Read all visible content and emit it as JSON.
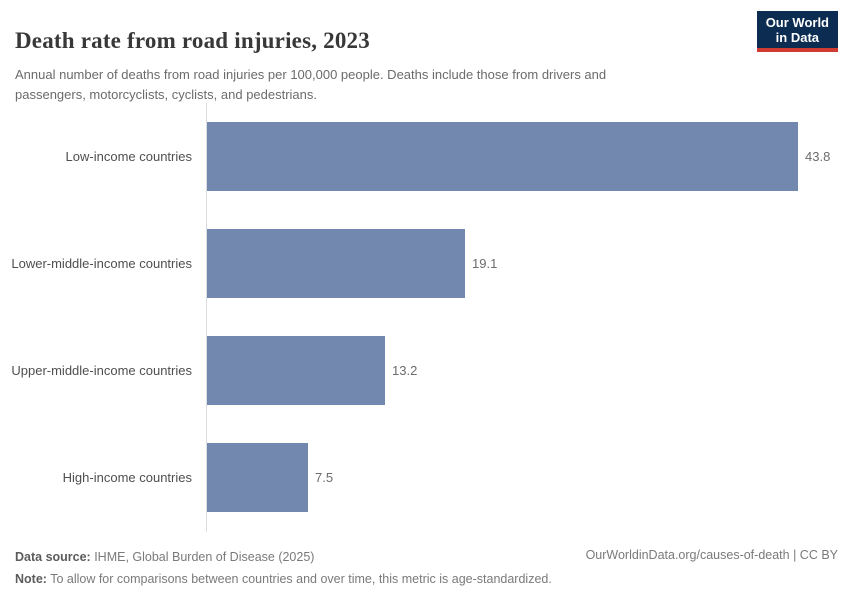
{
  "header": {
    "title": "Death rate from road injuries, 2023",
    "subtitle": "Annual number of deaths from road injuries per 100,000 people. Deaths include those from drivers and passengers, motorcyclists, cyclists, and pedestrians.",
    "logo": {
      "line1": "Our World",
      "line2": "in Data"
    }
  },
  "chart_data": {
    "type": "bar",
    "orientation": "horizontal",
    "title": "Death rate from road injuries, 2023",
    "categories": [
      "Low-income countries",
      "Lower-middle-income countries",
      "Upper-middle-income countries",
      "High-income countries"
    ],
    "values": [
      43.8,
      19.1,
      13.2,
      7.5
    ],
    "value_labels": [
      "43.8",
      "19.1",
      "13.2",
      "7.5"
    ],
    "xlabel": "",
    "ylabel": "",
    "xlim": [
      0,
      43.8
    ],
    "grid": false,
    "legend": false,
    "bar_color": "#7288af"
  },
  "footer": {
    "data_source_label": "Data source:",
    "data_source_text": " IHME, Global Burden of Disease (2025)",
    "note_label": "Note:",
    "note_text": " To allow for comparisons between countries and over time, this metric is age-standardized.",
    "attribution": "OurWorldinData.org/causes-of-death | CC BY"
  },
  "colors": {
    "bar": "#7288af",
    "logo_background": "#0d2c51",
    "logo_accent": "#cf3a31",
    "axis_line": "#dcdcdc"
  }
}
